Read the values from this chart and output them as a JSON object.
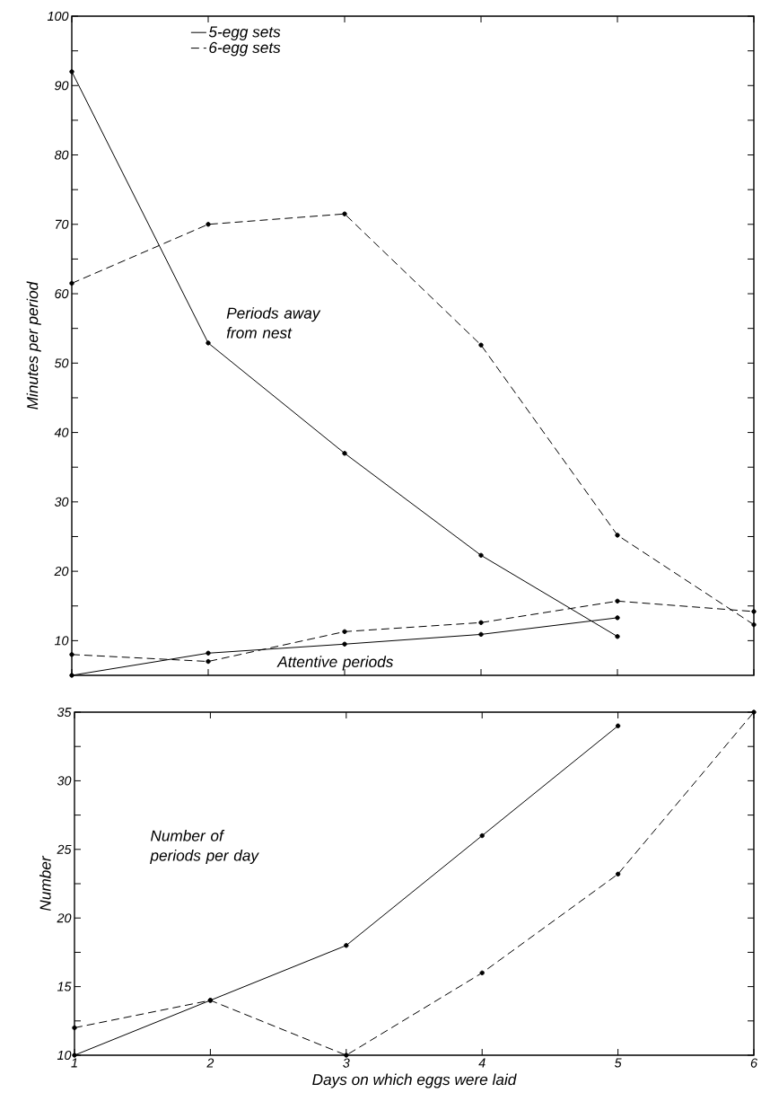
{
  "chart_data": [
    {
      "type": "line",
      "ylabel": "Minutes per period",
      "xlim": [
        1,
        6
      ],
      "ylim": [
        5,
        100
      ],
      "xticks": [
        1,
        2,
        3,
        4,
        5,
        6
      ],
      "yticks": [
        10,
        {
          "value": 15,
          "label": null
        },
        20,
        {
          "value": 25,
          "label": null
        },
        30,
        {
          "value": 35,
          "label": null
        },
        40,
        {
          "value": 45,
          "label": null
        },
        50,
        {
          "value": 55,
          "label": null
        },
        60,
        {
          "value": 65,
          "label": null
        },
        70,
        {
          "value": 75,
          "label": null
        },
        80,
        {
          "value": 85,
          "label": null
        },
        90,
        {
          "value": 95,
          "label": null
        },
        100
      ],
      "tick_labels": "y",
      "legend": "top left",
      "marker": "circle",
      "grid": false,
      "series": [
        {
          "name": "5-egg sets",
          "color": "#000000",
          "line_style": "solid",
          "x": [
            1,
            2,
            3,
            4,
            5
          ],
          "values": [
            92,
            52.9,
            37,
            22.3,
            10.6
          ]
        },
        {
          "name": "6-egg sets",
          "color": "#000000",
          "line_style": "dashed",
          "x": [
            1,
            2,
            3,
            4,
            5,
            6
          ],
          "values": [
            61.5,
            70,
            71.5,
            52.6,
            25.2,
            12.3
          ]
        },
        {
          "color": "#000000",
          "line_style": "solid",
          "x": [
            1,
            2,
            3,
            4,
            5
          ],
          "values": [
            5,
            8.2,
            9.5,
            10.9,
            13.3
          ]
        },
        {
          "color": "#000000",
          "line_style": "dashed",
          "x": [
            1,
            2,
            3,
            4,
            5,
            6
          ],
          "values": [
            8,
            7,
            11.3,
            12.6,
            15.7,
            14.2
          ]
        }
      ],
      "annotations": [
        "Periods away from nest",
        "Attentive periods"
      ]
    },
    {
      "type": "line",
      "ylabel": "Number",
      "xlabel": "Days on which eggs were laid",
      "xlim": [
        1,
        6
      ],
      "ylim": [
        10,
        35
      ],
      "xticks": [
        1,
        2,
        3,
        4,
        5,
        6
      ],
      "yticks": [
        10,
        {
          "value": 12.5,
          "label": null
        },
        15,
        {
          "value": 17.5,
          "label": null
        },
        20,
        {
          "value": 22.5,
          "label": null
        },
        25,
        {
          "value": 27.5,
          "label": null
        },
        30,
        {
          "value": 32.5,
          "label": null
        },
        35
      ],
      "marker": "circle",
      "grid": false,
      "series": [
        {
          "color": "#000000",
          "line_style": "solid",
          "x": [
            1,
            2,
            3,
            4,
            5
          ],
          "values": [
            10,
            14,
            18,
            26,
            34
          ]
        },
        {
          "color": "#000000",
          "line_style": "dashed",
          "x": [
            1,
            2,
            3,
            4,
            5,
            6
          ],
          "values": [
            12,
            14,
            10,
            16,
            23.2,
            35
          ]
        }
      ],
      "annotations": [
        "Number of periods per day"
      ]
    }
  ]
}
